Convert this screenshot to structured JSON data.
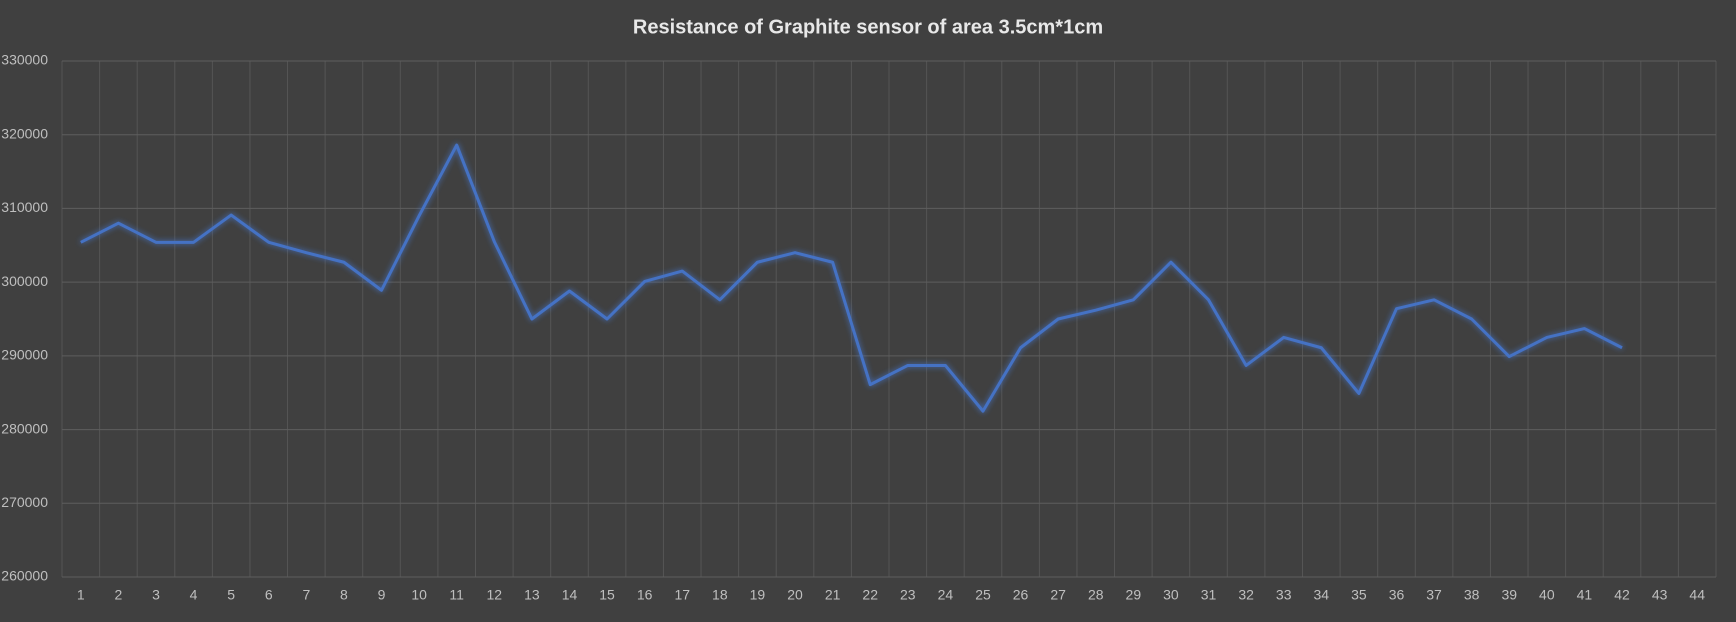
{
  "chart_data": {
    "type": "line",
    "title": "Resistance of Graphite sensor of area 3.5cm*1cm",
    "categories": [
      "1",
      "2",
      "3",
      "4",
      "5",
      "6",
      "7",
      "8",
      "9",
      "10",
      "11",
      "12",
      "13",
      "14",
      "15",
      "16",
      "17",
      "18",
      "19",
      "20",
      "21",
      "22",
      "23",
      "24",
      "25",
      "26",
      "27",
      "28",
      "29",
      "30",
      "31",
      "32",
      "33",
      "34",
      "35",
      "36",
      "37",
      "38",
      "39",
      "40",
      "41",
      "42",
      "43",
      "44"
    ],
    "series": [
      {
        "name": "Resistance",
        "color": "#4472c4",
        "values": [
          305400,
          308000,
          305400,
          305400,
          309100,
          305400,
          304000,
          302700,
          298900,
          309000,
          318600,
          305500,
          295000,
          298800,
          295000,
          300100,
          301500,
          297600,
          302700,
          304000,
          302700,
          286100,
          288700,
          288700,
          282500,
          291100,
          295000,
          296200,
          297600,
          302700,
          297600,
          288700,
          292500,
          291100,
          284900,
          296400,
          297600,
          295000,
          289900,
          292500,
          293700,
          291100,
          null,
          null
        ]
      }
    ],
    "ylim": [
      260000,
      330000
    ],
    "yticks": [
      260000,
      270000,
      280000,
      290000,
      300000,
      310000,
      320000,
      330000
    ],
    "grid": true
  }
}
